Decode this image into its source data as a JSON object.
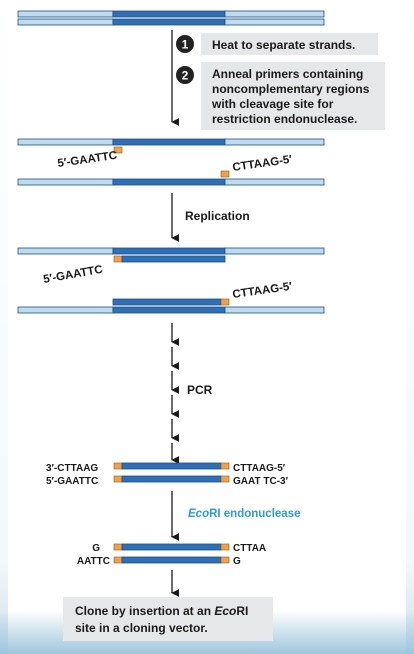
{
  "steps": {
    "step1": {
      "number": "1",
      "text": "Heat to separate strands."
    },
    "step2": {
      "number": "2",
      "lines": [
        "Anneal primers containing",
        "noncomplementary regions",
        "with cleavage site for",
        "restriction endonuclease."
      ]
    }
  },
  "primer_labels": {
    "top_left": "5′-GAATTC",
    "bottom_right": "CTTAAG-5′",
    "rep_left": "5′-GAATTC",
    "rep_right": "CTTAAG-5′"
  },
  "replication_label": "Replication",
  "pcr_label": "PCR",
  "product_labels": {
    "left_top": "3′-CTTAAG",
    "left_bottom": "5′-GAATTC",
    "right_top": "CTTAAG-5′",
    "right_bottom": "GAAT TC-3′"
  },
  "enzyme_label": {
    "italic": "Eco",
    "rest": "RI endonuclease",
    "color": "#2e9bd6"
  },
  "cut_labels": {
    "left_top": "G",
    "left_bottom": "AATTC",
    "right_top": "CTTAA",
    "right_bottom": "G"
  },
  "final": {
    "line1_pre": "Clone by insertion at an ",
    "line1_italic": "Eco",
    "line1_post": "RI",
    "line2": "site in a cloning vector."
  },
  "colors": {
    "strand_light": "#bfdbed",
    "strand_dark": "#2f6fb5",
    "strand_outline": "#1d4e86",
    "primer_orange": "#f0a24a",
    "box_bg": "#e6e7e8",
    "badge_bg": "#222222"
  }
}
